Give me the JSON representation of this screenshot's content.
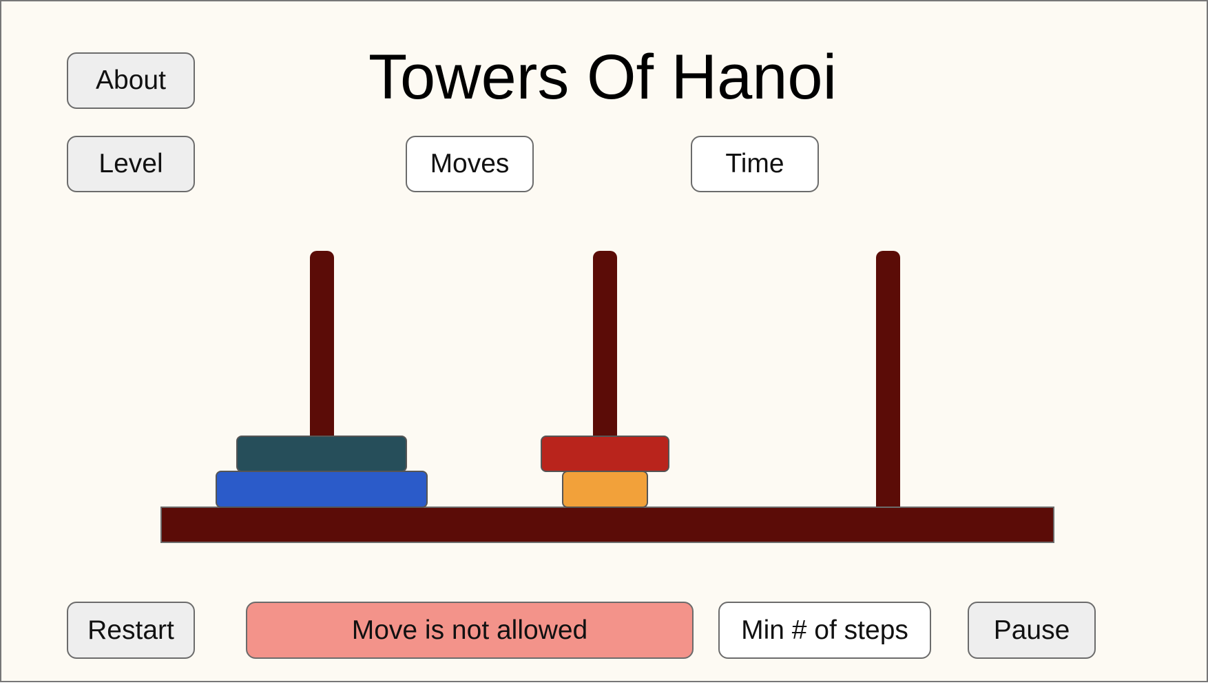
{
  "title": "Towers Of Hanoi",
  "buttons": {
    "about": "About",
    "level": "Level",
    "moves": "Moves",
    "time": "Time",
    "restart": "Restart",
    "min_steps": "Min # of steps",
    "pause": "Pause"
  },
  "status_message": "Move is not allowed",
  "colors": {
    "background": "#fdfaf3",
    "pole": "#5b0c07",
    "message": "#f3938a"
  },
  "towers": [
    {
      "name": "left",
      "disks": [
        {
          "color": "#2b5bc9",
          "size": "large"
        },
        {
          "color": "#264e5a",
          "size": "medium"
        }
      ]
    },
    {
      "name": "middle",
      "disks": [
        {
          "color": "#f2a13a",
          "size": "small"
        },
        {
          "color": "#b9241c",
          "size": "medium-small"
        }
      ]
    },
    {
      "name": "right",
      "disks": []
    }
  ]
}
